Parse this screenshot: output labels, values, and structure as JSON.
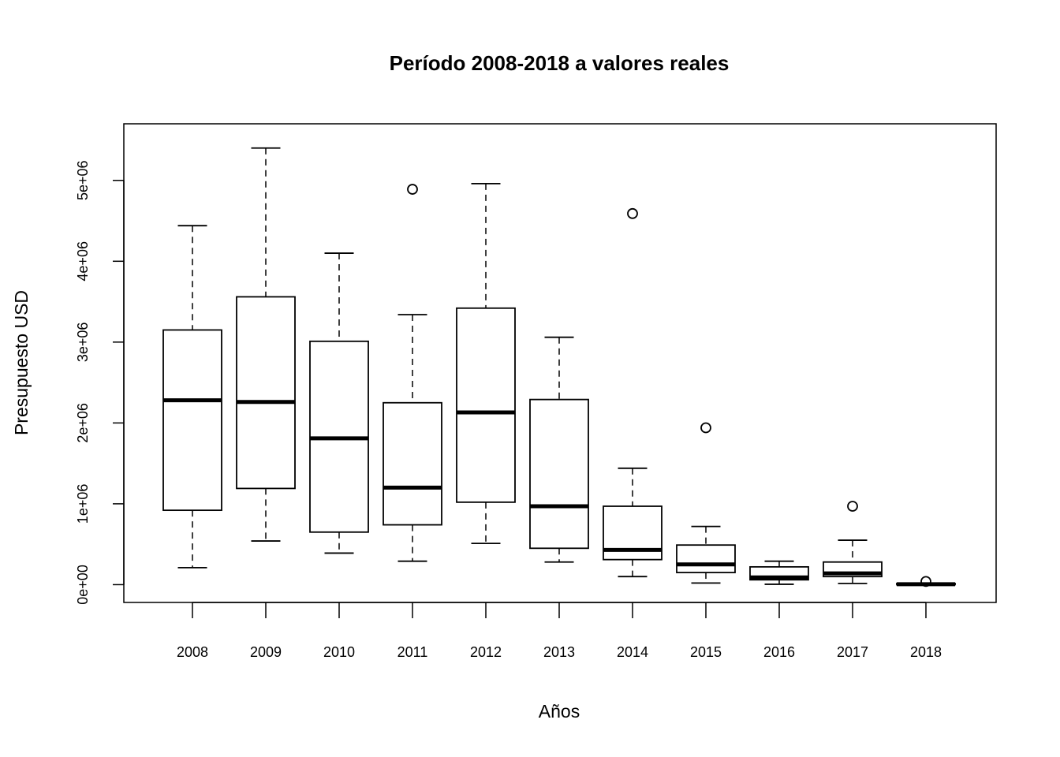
{
  "chart_data": {
    "type": "boxplot",
    "title": "Período 2008-2018 a valores reales",
    "xlabel": "Años",
    "ylabel": "Presupuesto USD",
    "categories": [
      "2008",
      "2009",
      "2010",
      "2011",
      "2012",
      "2013",
      "2014",
      "2015",
      "2016",
      "2017",
      "2018"
    ],
    "yticks": [
      {
        "value": 0,
        "label": "0e+00"
      },
      {
        "value": 1000000,
        "label": "1e+06"
      },
      {
        "value": 2000000,
        "label": "2e+06"
      },
      {
        "value": 3000000,
        "label": "3e+06"
      },
      {
        "value": 4000000,
        "label": "4e+06"
      },
      {
        "value": 5000000,
        "label": "5e+06"
      }
    ],
    "ylim": [
      -220000,
      5700000
    ],
    "boxes": [
      {
        "category": "2008",
        "whisker_low": 210000,
        "q1": 920000,
        "median": 2280000,
        "q3": 3150000,
        "whisker_high": 4440000,
        "outliers": []
      },
      {
        "category": "2009",
        "whisker_low": 540000,
        "q1": 1190000,
        "median": 2260000,
        "q3": 3560000,
        "whisker_high": 5400000,
        "outliers": []
      },
      {
        "category": "2010",
        "whisker_low": 390000,
        "q1": 650000,
        "median": 1810000,
        "q3": 3010000,
        "whisker_high": 4100000,
        "outliers": []
      },
      {
        "category": "2011",
        "whisker_low": 290000,
        "q1": 740000,
        "median": 1200000,
        "q3": 2250000,
        "whisker_high": 3340000,
        "outliers": [
          4890000
        ]
      },
      {
        "category": "2012",
        "whisker_low": 510000,
        "q1": 1020000,
        "median": 2130000,
        "q3": 3420000,
        "whisker_high": 4960000,
        "outliers": []
      },
      {
        "category": "2013",
        "whisker_low": 280000,
        "q1": 450000,
        "median": 970000,
        "q3": 2290000,
        "whisker_high": 3060000,
        "outliers": []
      },
      {
        "category": "2014",
        "whisker_low": 100000,
        "q1": 310000,
        "median": 430000,
        "q3": 970000,
        "whisker_high": 1440000,
        "outliers": [
          4590000
        ]
      },
      {
        "category": "2015",
        "whisker_low": 20000,
        "q1": 150000,
        "median": 250000,
        "q3": 490000,
        "whisker_high": 720000,
        "outliers": [
          1940000
        ]
      },
      {
        "category": "2016",
        "whisker_low": 5000,
        "q1": 60000,
        "median": 90000,
        "q3": 220000,
        "whisker_high": 290000,
        "outliers": []
      },
      {
        "category": "2017",
        "whisker_low": 15000,
        "q1": 100000,
        "median": 140000,
        "q3": 280000,
        "whisker_high": 550000,
        "outliers": [
          970000
        ]
      },
      {
        "category": "2018",
        "whisker_low": 0,
        "q1": 0,
        "median": 5000,
        "q3": 15000,
        "whisker_high": 20000,
        "outliers": [
          40000
        ]
      }
    ],
    "grid": false,
    "legend": "none"
  }
}
